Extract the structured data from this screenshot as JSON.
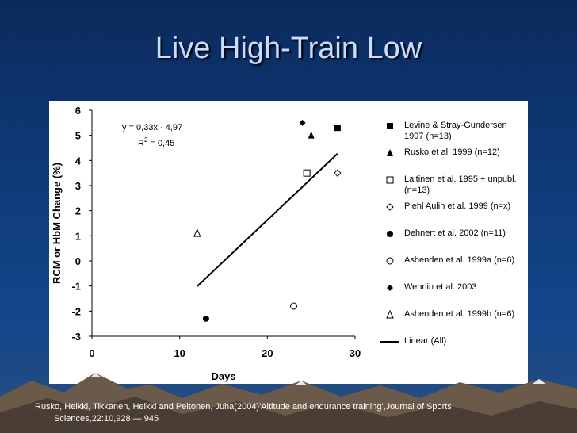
{
  "slide": {
    "title": "Live High-Train Low",
    "citation_line1": "Rusko, Heikki, Tikkanen, Heikki and Peltonen, Juha(2004)'Altitude and endurance training',Journal of Sports",
    "citation_line2": "Sciences,22:10,928 — 945"
  },
  "chart_data": {
    "type": "scatter",
    "title": "",
    "xlabel": "Days",
    "ylabel": "RCM or HbM Change (%)",
    "xlim": [
      0,
      30
    ],
    "ylim": [
      -3,
      6
    ],
    "xticks": [
      "0",
      "10",
      "20",
      "30"
    ],
    "yticks": [
      "6",
      "5",
      "4",
      "3",
      "2",
      "1",
      "0",
      "-1",
      "-2",
      "-3"
    ],
    "regression": {
      "equation": "y = 0,33x - 4,97",
      "r2_label": "R",
      "r2_sup": "2",
      "r2_value": " = 0,45",
      "slope": 0.33,
      "intercept": -4.97,
      "x_range": [
        12,
        28
      ]
    },
    "series": [
      {
        "name": "Levine & Stray-Gundersen 1997 (n=13)",
        "marker": "filled-square",
        "points": [
          [
            28,
            5.3
          ]
        ]
      },
      {
        "name": "Rusko et al. 1999 (n=12)",
        "marker": "filled-triangle",
        "points": [
          [
            25,
            5.0
          ]
        ]
      },
      {
        "name": "Laitinen et al. 1995 + unpubl. (n=13)",
        "marker": "open-square",
        "points": [
          [
            24.5,
            3.5
          ]
        ]
      },
      {
        "name": "Piehl Aulin et al. 1999 (n=x)",
        "marker": "open-diamond",
        "points": [
          [
            28,
            3.5
          ]
        ]
      },
      {
        "name": "Dehnert et al. 2002 (n=11)",
        "marker": "filled-circle",
        "points": [
          [
            13,
            -2.3
          ]
        ]
      },
      {
        "name": "Ashenden et al. 1999a (n=6)",
        "marker": "open-circle",
        "points": [
          [
            23,
            -1.8
          ]
        ]
      },
      {
        "name": "Wehrlin et al. 2003",
        "marker": "filled-diamond",
        "points": [
          [
            24,
            5.5
          ]
        ]
      },
      {
        "name": "Ashenden et al. 1999b (n=6)",
        "marker": "open-triangle",
        "points": [
          [
            12,
            1.1
          ]
        ]
      }
    ],
    "legend": [
      {
        "marker": "filled-square",
        "label": "Levine & Stray-Gundersen 1997 (n=13)"
      },
      {
        "marker": "filled-triangle",
        "label": "Rusko et al. 1999 (n=12)"
      },
      {
        "marker": "open-square",
        "label": "Laitinen et al. 1995 + unpubl. (n=13)"
      },
      {
        "marker": "open-diamond",
        "label": "Piehl Aulin et al. 1999 (n=x)"
      },
      {
        "marker": "filled-circle",
        "label": "Dehnert et al. 2002 (n=11)"
      },
      {
        "marker": "open-circle",
        "label": "Ashenden et al. 1999a (n=6)"
      },
      {
        "marker": "filled-diamond",
        "label": "Wehrlin et al. 2003"
      },
      {
        "marker": "open-triangle",
        "label": "Ashenden et al. 1999b (n=6)"
      },
      {
        "marker": "line",
        "label": "Linear (All)"
      }
    ]
  }
}
